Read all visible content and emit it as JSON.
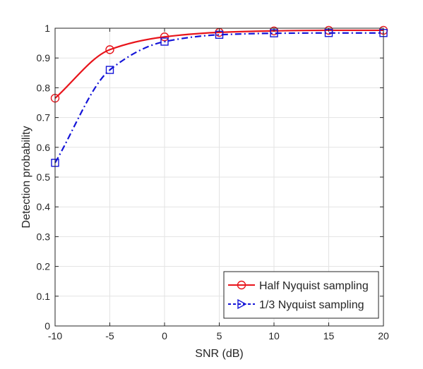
{
  "chart_data": {
    "type": "line",
    "xlabel": "SNR (dB)",
    "ylabel": "Detection probability",
    "xlim": [
      -10,
      20
    ],
    "ylim": [
      0,
      1
    ],
    "xticks": [
      -10,
      -5,
      0,
      5,
      10,
      15,
      20
    ],
    "xtick_labels": [
      "-10",
      "-5",
      "0",
      "5",
      "10",
      "15",
      "20"
    ],
    "yticks": [
      0,
      0.1,
      0.2,
      0.3,
      0.4,
      0.5,
      0.6,
      0.7,
      0.8,
      0.9,
      1
    ],
    "ytick_labels": [
      "0",
      "0.1",
      "0.2",
      "0.3",
      "0.4",
      "0.5",
      "0.6",
      "0.7",
      "0.8",
      "0.9",
      "1"
    ],
    "grid": true,
    "legend_position": "bottom-right",
    "series": [
      {
        "name": "Half Nyquist sampling",
        "color": "#e8141b",
        "line_style": "solid",
        "marker": "circle",
        "x": [
          -10,
          -5,
          0,
          5,
          10,
          15,
          20
        ],
        "values": [
          0.765,
          0.928,
          0.971,
          0.986,
          0.991,
          0.993,
          0.993
        ]
      },
      {
        "name": "1/3 Nyquist sampling",
        "color": "#1414d8",
        "line_style": "dashdot",
        "marker": "square",
        "legend_marker": "triangle-right",
        "x": [
          -10,
          -5,
          0,
          5,
          10,
          15,
          20
        ],
        "values": [
          0.548,
          0.86,
          0.955,
          0.978,
          0.983,
          0.984,
          0.984
        ]
      }
    ]
  }
}
